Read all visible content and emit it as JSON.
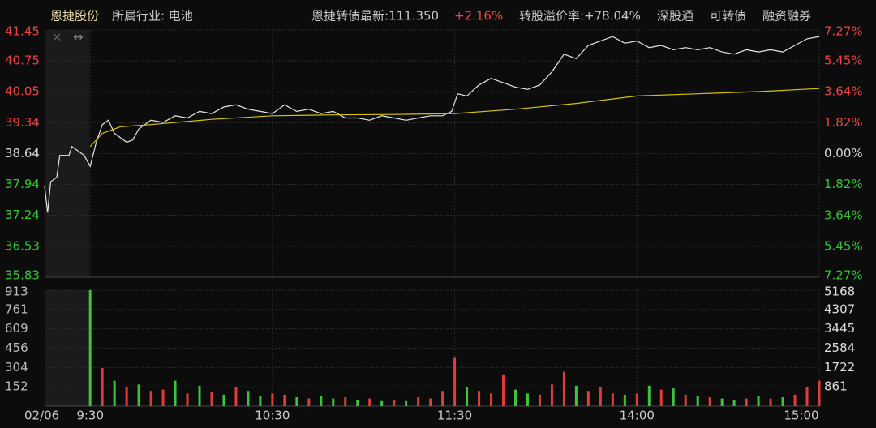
{
  "header": {
    "name": "恩捷股份",
    "industry": "所属行业: 电池",
    "bond": "恩捷转债最新:111.350",
    "change": "+2.16%",
    "premium": "转股溢价率:+78.04%",
    "tags": [
      "深股通",
      "可转债",
      "融资融券"
    ]
  },
  "chart_data": [
    {
      "type": "line",
      "grid": true,
      "xlim": [
        -15,
        240
      ],
      "ylim": [
        35.83,
        41.45
      ],
      "yticks": [
        35.83,
        36.53,
        37.24,
        37.94,
        38.64,
        39.34,
        40.05,
        40.75,
        41.45
      ],
      "y2lim": [
        -7.27,
        7.27
      ],
      "y2ticks": [
        {
          "value": -7.27,
          "label": "7.27%"
        },
        {
          "value": -5.45,
          "label": "5.45%"
        },
        {
          "value": -3.64,
          "label": "3.64%"
        },
        {
          "value": -1.82,
          "label": "1.82%"
        },
        {
          "value": 0,
          "label": "0.00%"
        },
        {
          "value": 1.82,
          "label": "1.82%"
        },
        {
          "value": 3.64,
          "label": "3.64%"
        },
        {
          "value": 5.45,
          "label": "5.45%"
        },
        {
          "value": 7.27,
          "label": "7.27%"
        }
      ],
      "series": [
        {
          "color": "#e6e6e6",
          "x": [
            -15,
            -14,
            -13,
            -11,
            -10,
            -7,
            -6,
            -4,
            -2,
            0,
            2,
            4,
            6,
            8,
            10,
            12,
            14,
            16,
            18,
            20,
            24,
            28,
            32,
            36,
            40,
            44,
            48,
            52,
            56,
            60,
            64,
            68,
            72,
            76,
            80,
            84,
            88,
            92,
            96,
            100,
            104,
            108,
            112,
            116,
            119,
            121,
            124,
            128,
            132,
            136,
            140,
            144,
            148,
            152,
            156,
            160,
            164,
            168,
            172,
            176,
            180,
            184,
            188,
            192,
            196,
            200,
            204,
            208,
            212,
            216,
            220,
            224,
            228,
            232,
            236,
            240
          ],
          "values": [
            37.9,
            37.3,
            38.0,
            38.1,
            38.6,
            38.6,
            38.8,
            38.7,
            38.6,
            38.35,
            38.9,
            39.3,
            39.4,
            39.1,
            39.0,
            38.9,
            38.95,
            39.2,
            39.3,
            39.4,
            39.35,
            39.5,
            39.45,
            39.6,
            39.55,
            39.7,
            39.75,
            39.65,
            39.6,
            39.55,
            39.75,
            39.6,
            39.65,
            39.55,
            39.6,
            39.45,
            39.45,
            39.4,
            39.5,
            39.45,
            39.4,
            39.45,
            39.5,
            39.5,
            39.6,
            40.0,
            39.95,
            40.2,
            40.35,
            40.25,
            40.15,
            40.1,
            40.2,
            40.5,
            40.9,
            40.8,
            41.1,
            41.2,
            41.3,
            41.15,
            41.2,
            41.05,
            41.1,
            41.0,
            41.05,
            41.0,
            41.05,
            40.95,
            40.9,
            41.0,
            40.95,
            41.0,
            40.95,
            41.1,
            41.25,
            41.3
          ]
        },
        {
          "color": "#d4c40a",
          "x": [
            0,
            4,
            10,
            20,
            40,
            60,
            80,
            100,
            120,
            140,
            160,
            180,
            200,
            220,
            240
          ],
          "values": [
            38.8,
            39.1,
            39.25,
            39.3,
            39.42,
            39.5,
            39.52,
            39.53,
            39.55,
            39.65,
            39.78,
            39.95,
            40.0,
            40.05,
            40.12
          ]
        }
      ]
    },
    {
      "type": "bar",
      "grid": true,
      "date_label": "02/06",
      "xlim": [
        -15,
        240
      ],
      "xticks": [
        {
          "value": 0,
          "label": "9:30"
        },
        {
          "value": 60,
          "label": "10:30"
        },
        {
          "value": 120,
          "label": "11:30"
        },
        {
          "value": 180,
          "label": "14:00"
        },
        {
          "value": 240,
          "label": "15:00"
        }
      ],
      "ylim": [
        0,
        913
      ],
      "yticks": [
        152,
        304,
        456,
        609,
        761,
        913
      ],
      "y2lim": [
        0,
        5168
      ],
      "y2ticks": [
        861,
        1722,
        2584,
        3445,
        4307,
        5168
      ],
      "x": [
        0,
        4,
        8,
        12,
        16,
        20,
        24,
        28,
        32,
        36,
        40,
        44,
        48,
        52,
        56,
        60,
        64,
        68,
        72,
        76,
        80,
        84,
        88,
        92,
        96,
        100,
        104,
        108,
        112,
        116,
        120,
        124,
        128,
        132,
        136,
        140,
        144,
        148,
        152,
        156,
        160,
        164,
        168,
        172,
        176,
        180,
        184,
        188,
        192,
        196,
        200,
        204,
        208,
        212,
        216,
        220,
        224,
        228,
        232,
        236,
        240
      ],
      "values": [
        913,
        300,
        200,
        150,
        170,
        120,
        130,
        200,
        100,
        160,
        110,
        90,
        150,
        120,
        80,
        100,
        90,
        70,
        60,
        80,
        60,
        70,
        50,
        60,
        40,
        50,
        40,
        70,
        60,
        120,
        380,
        150,
        120,
        100,
        250,
        130,
        100,
        90,
        170,
        270,
        160,
        120,
        150,
        100,
        90,
        100,
        160,
        130,
        140,
        90,
        80,
        70,
        60,
        50,
        60,
        80,
        60,
        70,
        90,
        150,
        200
      ],
      "colors": [
        "#3cc43c",
        "#e23b3b",
        "#3cc43c",
        "#e23b3b",
        "#3cc43c",
        "#e23b3b",
        "#e23b3b",
        "#3cc43c",
        "#e23b3b",
        "#3cc43c",
        "#e23b3b",
        "#3cc43c",
        "#e23b3b",
        "#3cc43c",
        "#3cc43c",
        "#e23b3b",
        "#e23b3b",
        "#3cc43c",
        "#e23b3b",
        "#3cc43c",
        "#3cc43c",
        "#e23b3b",
        "#3cc43c",
        "#e23b3b",
        "#3cc43c",
        "#e23b3b",
        "#3cc43c",
        "#e23b3b",
        "#e23b3b",
        "#e23b3b",
        "#e23b3b",
        "#3cc43c",
        "#e23b3b",
        "#e23b3b",
        "#e23b3b",
        "#3cc43c",
        "#3cc43c",
        "#e23b3b",
        "#e23b3b",
        "#e23b3b",
        "#3cc43c",
        "#e23b3b",
        "#e23b3b",
        "#e23b3b",
        "#3cc43c",
        "#e23b3b",
        "#3cc43c",
        "#e23b3b",
        "#3cc43c",
        "#e23b3b",
        "#3cc43c",
        "#e23b3b",
        "#3cc43c",
        "#3cc43c",
        "#e23b3b",
        "#3cc43c",
        "#e23b3b",
        "#3cc43c",
        "#e23b3b",
        "#e23b3b",
        "#e23b3b"
      ]
    }
  ]
}
